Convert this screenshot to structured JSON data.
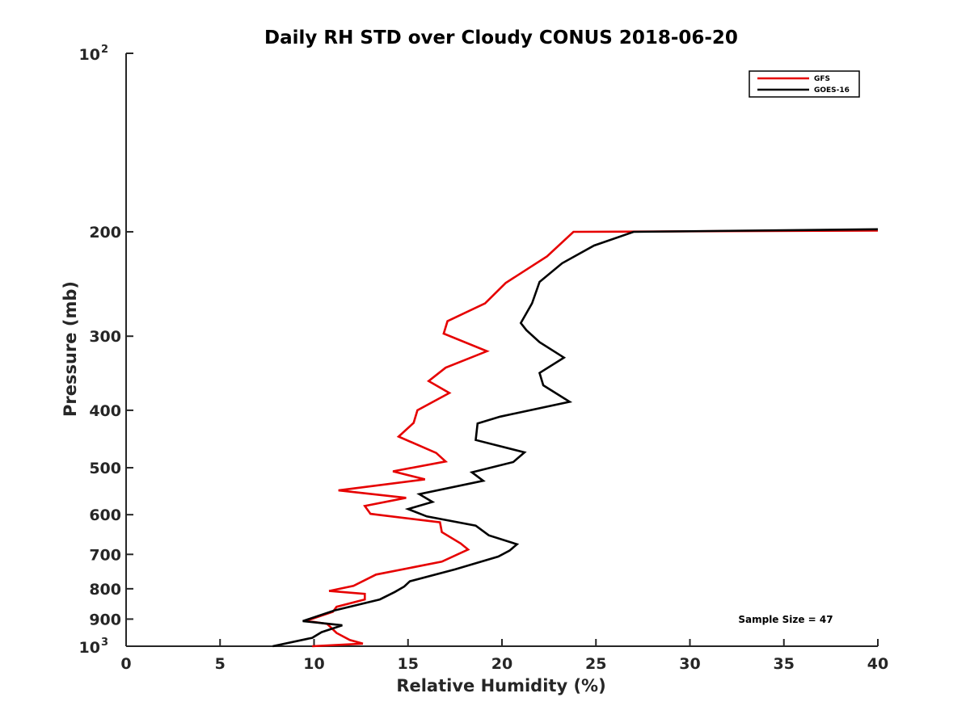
{
  "chart_data": {
    "type": "line",
    "title": "Daily RH STD over Cloudy CONUS 2018-06-20",
    "xlabel": "Relative Humidity (%)",
    "ylabel": "Pressure (mb)",
    "xlim": [
      0,
      40
    ],
    "ylim": [
      100,
      1000
    ],
    "y_scale": "log",
    "y_reversed": true,
    "grid": false,
    "legend_position": "top-right",
    "x_ticks": [
      "0",
      "5",
      "10",
      "15",
      "20",
      "25",
      "30",
      "35",
      "40"
    ],
    "y_ticks": [
      {
        "value": 100,
        "base": "10",
        "exp": "2"
      },
      {
        "value": 200,
        "label": "200"
      },
      {
        "value": 300,
        "label": "300"
      },
      {
        "value": 400,
        "label": "400"
      },
      {
        "value": 500,
        "label": "500"
      },
      {
        "value": 600,
        "label": "600"
      },
      {
        "value": 700,
        "label": "700"
      },
      {
        "value": 800,
        "label": "800"
      },
      {
        "value": 900,
        "label": "900"
      },
      {
        "value": 1000,
        "base": "10",
        "exp": "3"
      }
    ],
    "annotation": "Sample Size = 47",
    "series": [
      {
        "name": "GFS",
        "color": "#e60000",
        "points": [
          [
            40,
            199
          ],
          [
            23.8,
            200
          ],
          [
            22.4,
            220
          ],
          [
            20.2,
            244
          ],
          [
            19.1,
            264
          ],
          [
            17.1,
            283
          ],
          [
            16.9,
            297
          ],
          [
            19.2,
            318
          ],
          [
            17.0,
            339
          ],
          [
            16.1,
            357
          ],
          [
            17.2,
            374
          ],
          [
            15.5,
            400
          ],
          [
            15.3,
            420
          ],
          [
            14.5,
            443
          ],
          [
            16.5,
            472
          ],
          [
            17.0,
            488
          ],
          [
            14.2,
            507
          ],
          [
            15.9,
            523
          ],
          [
            11.3,
            546
          ],
          [
            14.9,
            562
          ],
          [
            12.7,
            580
          ],
          [
            13.0,
            598
          ],
          [
            16.7,
            618
          ],
          [
            16.8,
            642
          ],
          [
            17.8,
            671
          ],
          [
            18.2,
            687
          ],
          [
            16.8,
            720
          ],
          [
            13.3,
            757
          ],
          [
            12.1,
            791
          ],
          [
            10.8,
            807
          ],
          [
            12.7,
            816
          ],
          [
            12.7,
            834
          ],
          [
            11.2,
            858
          ],
          [
            11.0,
            875
          ],
          [
            10.3,
            890
          ],
          [
            9.6,
            906
          ],
          [
            10.7,
            917
          ],
          [
            11.2,
            950
          ],
          [
            11.9,
            976
          ],
          [
            12.6,
            990
          ],
          [
            9.9,
            1000
          ]
        ]
      },
      {
        "name": "GOES-16",
        "color": "#000000",
        "points": [
          [
            40,
            198
          ],
          [
            27.0,
            200
          ],
          [
            24.9,
            211
          ],
          [
            23.2,
            226
          ],
          [
            22.0,
            243
          ],
          [
            21.6,
            264
          ],
          [
            21.0,
            285
          ],
          [
            21.3,
            293
          ],
          [
            22.0,
            307
          ],
          [
            23.3,
            326
          ],
          [
            22.0,
            346
          ],
          [
            22.2,
            363
          ],
          [
            23.6,
            387
          ],
          [
            19.9,
            410
          ],
          [
            18.7,
            421
          ],
          [
            18.6,
            449
          ],
          [
            21.2,
            471
          ],
          [
            20.6,
            489
          ],
          [
            18.4,
            509
          ],
          [
            19.0,
            526
          ],
          [
            15.6,
            554
          ],
          [
            16.3,
            571
          ],
          [
            15.0,
            587
          ],
          [
            16.0,
            604
          ],
          [
            18.6,
            626
          ],
          [
            19.3,
            650
          ],
          [
            20.8,
            673
          ],
          [
            20.4,
            690
          ],
          [
            19.8,
            706
          ],
          [
            17.5,
            742
          ],
          [
            15.1,
            777
          ],
          [
            14.8,
            793
          ],
          [
            14.3,
            810
          ],
          [
            13.5,
            834
          ],
          [
            11.1,
            870
          ],
          [
            9.4,
            907
          ],
          [
            11.5,
            922
          ],
          [
            10.4,
            947
          ],
          [
            9.9,
            968
          ],
          [
            7.8,
            1000
          ]
        ]
      }
    ]
  }
}
